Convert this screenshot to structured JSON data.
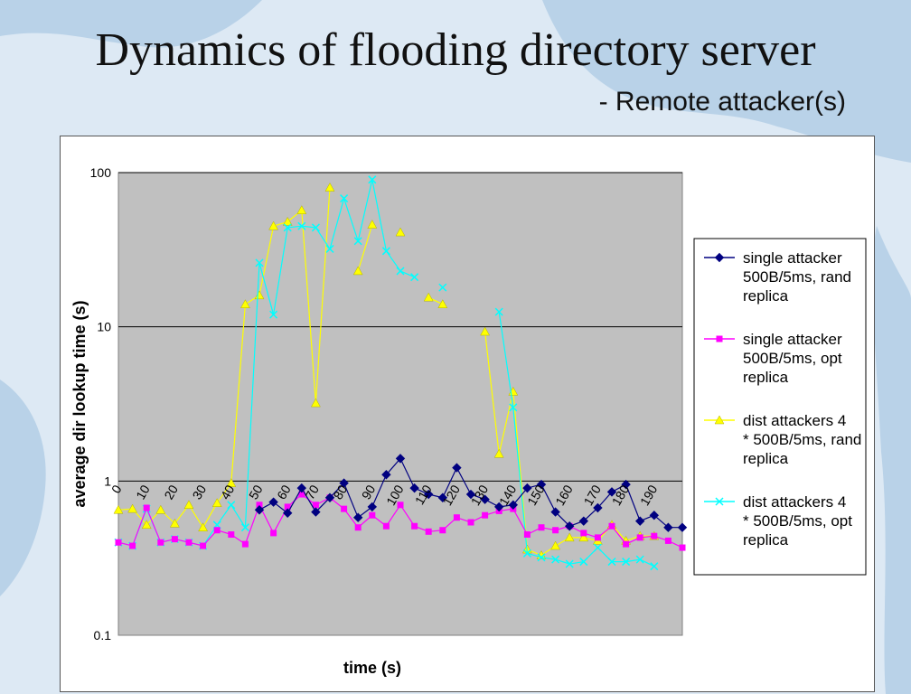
{
  "slide": {
    "title": "Dynamics of flooding directory server",
    "subtitle": "- Remote attacker(s)"
  },
  "chart_data": {
    "type": "line",
    "y_scale": "log",
    "ylim": [
      0.1,
      100
    ],
    "y_ticks": [
      {
        "value": 100,
        "label": "100"
      },
      {
        "value": 10,
        "label": "10"
      },
      {
        "value": 1,
        "label": "1"
      },
      {
        "value": 0.1,
        "label": "0.1"
      }
    ],
    "x_ticks": [
      "0",
      "10",
      "20",
      "30",
      "40",
      "50",
      "60",
      "70",
      "80",
      "90",
      "100",
      "110",
      "120",
      "130",
      "140",
      "150",
      "160",
      "170",
      "180",
      "190"
    ],
    "xlim": [
      0,
      200
    ],
    "xlabel": "time (s)",
    "ylabel": "average dir lookup time (s)",
    "grid": "horizontal major",
    "plot_background": "#c0c0c0",
    "legend_position": "right",
    "series": [
      {
        "name": "single attacker 500B/5ms, rand replica",
        "color": "#000080",
        "marker": "diamond",
        "points": [
          [
            50,
            0.65
          ],
          [
            55,
            0.73
          ],
          [
            60,
            0.62
          ],
          [
            65,
            0.9
          ],
          [
            70,
            0.63
          ],
          [
            75,
            0.78
          ],
          [
            80,
            0.97
          ],
          [
            85,
            0.58
          ],
          [
            90,
            0.68
          ],
          [
            95,
            1.1
          ],
          [
            100,
            1.4
          ],
          [
            105,
            0.9
          ],
          [
            110,
            0.82
          ],
          [
            115,
            0.78
          ],
          [
            120,
            1.22
          ],
          [
            125,
            0.82
          ],
          [
            130,
            0.76
          ],
          [
            135,
            0.68
          ],
          [
            140,
            0.7
          ],
          [
            145,
            0.9
          ],
          [
            150,
            0.95
          ],
          [
            155,
            0.63
          ],
          [
            160,
            0.51
          ],
          [
            165,
            0.55
          ],
          [
            170,
            0.67
          ],
          [
            175,
            0.85
          ],
          [
            180,
            0.95
          ],
          [
            185,
            0.55
          ],
          [
            190,
            0.6
          ],
          [
            195,
            0.5
          ],
          [
            200,
            0.5
          ]
        ]
      },
      {
        "name": "single attacker 500B/5ms, opt replica",
        "color": "#ff00ff",
        "marker": "square",
        "points": [
          [
            0,
            0.4
          ],
          [
            5,
            0.38
          ],
          [
            10,
            0.67
          ],
          [
            15,
            0.4
          ],
          [
            20,
            0.42
          ],
          [
            25,
            0.4
          ],
          [
            30,
            0.38
          ],
          [
            35,
            0.48
          ],
          [
            40,
            0.45
          ],
          [
            45,
            0.39
          ],
          [
            50,
            0.7
          ],
          [
            55,
            0.46
          ],
          [
            60,
            0.68
          ],
          [
            65,
            0.82
          ],
          [
            70,
            0.7
          ],
          [
            75,
            0.78
          ],
          [
            80,
            0.66
          ],
          [
            85,
            0.5
          ],
          [
            90,
            0.6
          ],
          [
            95,
            0.51
          ],
          [
            100,
            0.7
          ],
          [
            105,
            0.51
          ],
          [
            110,
            0.47
          ],
          [
            115,
            0.48
          ],
          [
            120,
            0.58
          ],
          [
            125,
            0.54
          ],
          [
            130,
            0.6
          ],
          [
            135,
            0.64
          ],
          [
            140,
            0.66
          ],
          [
            145,
            0.45
          ],
          [
            150,
            0.5
          ],
          [
            155,
            0.48
          ],
          [
            160,
            0.51
          ],
          [
            165,
            0.46
          ],
          [
            170,
            0.43
          ],
          [
            175,
            0.51
          ],
          [
            180,
            0.39
          ],
          [
            185,
            0.43
          ],
          [
            190,
            0.44
          ],
          [
            195,
            0.41
          ],
          [
            200,
            0.37
          ]
        ]
      },
      {
        "name": "dist attackers 4 * 500B/5ms, rand replica",
        "color": "#ffff00",
        "marker": "triangle",
        "points": [
          [
            0,
            0.65
          ],
          [
            5,
            0.66
          ],
          [
            10,
            0.52
          ],
          [
            15,
            0.65
          ],
          [
            20,
            0.53
          ],
          [
            25,
            0.7
          ],
          [
            30,
            0.5
          ],
          [
            35,
            0.72
          ],
          [
            40,
            0.97
          ],
          [
            45,
            14
          ],
          [
            50,
            16
          ],
          [
            55,
            45
          ],
          [
            60,
            48
          ],
          [
            65,
            57
          ],
          [
            70,
            3.2
          ],
          [
            75,
            80
          ],
          [
            80,
            null
          ],
          [
            85,
            23
          ],
          [
            90,
            46
          ],
          [
            95,
            null
          ],
          [
            100,
            41
          ],
          [
            105,
            null
          ],
          [
            110,
            15.5
          ],
          [
            115,
            14
          ],
          [
            120,
            null
          ],
          [
            125,
            null
          ],
          [
            130,
            9.3
          ],
          [
            135,
            1.5
          ],
          [
            140,
            3.8
          ],
          [
            145,
            0.36
          ],
          [
            150,
            0.33
          ],
          [
            155,
            0.38
          ],
          [
            160,
            0.43
          ],
          [
            165,
            0.43
          ],
          [
            170,
            0.41
          ],
          [
            175,
            0.52
          ],
          [
            180,
            0.41
          ],
          [
            185,
            0.44
          ],
          [
            190,
            0.44
          ]
        ]
      },
      {
        "name": "dist attackers 4 * 500B/5ms, opt replica",
        "color": "#00ffff",
        "marker": "x",
        "points": [
          [
            0,
            0.4
          ],
          [
            5,
            0.38
          ],
          [
            10,
            0.66
          ],
          [
            15,
            0.4
          ],
          [
            20,
            0.42
          ],
          [
            25,
            0.4
          ],
          [
            30,
            0.38
          ],
          [
            35,
            0.52
          ],
          [
            40,
            0.7
          ],
          [
            45,
            0.5
          ],
          [
            50,
            26
          ],
          [
            55,
            12
          ],
          [
            60,
            44
          ],
          [
            65,
            45
          ],
          [
            70,
            44
          ],
          [
            75,
            32
          ],
          [
            80,
            68
          ],
          [
            85,
            36
          ],
          [
            90,
            90
          ],
          [
            95,
            31
          ],
          [
            100,
            23
          ],
          [
            105,
            21
          ],
          [
            110,
            null
          ],
          [
            115,
            18
          ],
          [
            120,
            null
          ],
          [
            125,
            null
          ],
          [
            130,
            null
          ],
          [
            135,
            12.5
          ],
          [
            140,
            3.0
          ],
          [
            145,
            0.34
          ],
          [
            150,
            0.32
          ],
          [
            155,
            0.31
          ],
          [
            160,
            0.29
          ],
          [
            165,
            0.3
          ],
          [
            170,
            0.37
          ],
          [
            175,
            0.3
          ],
          [
            180,
            0.3
          ],
          [
            185,
            0.31
          ],
          [
            190,
            0.28
          ]
        ]
      }
    ]
  }
}
